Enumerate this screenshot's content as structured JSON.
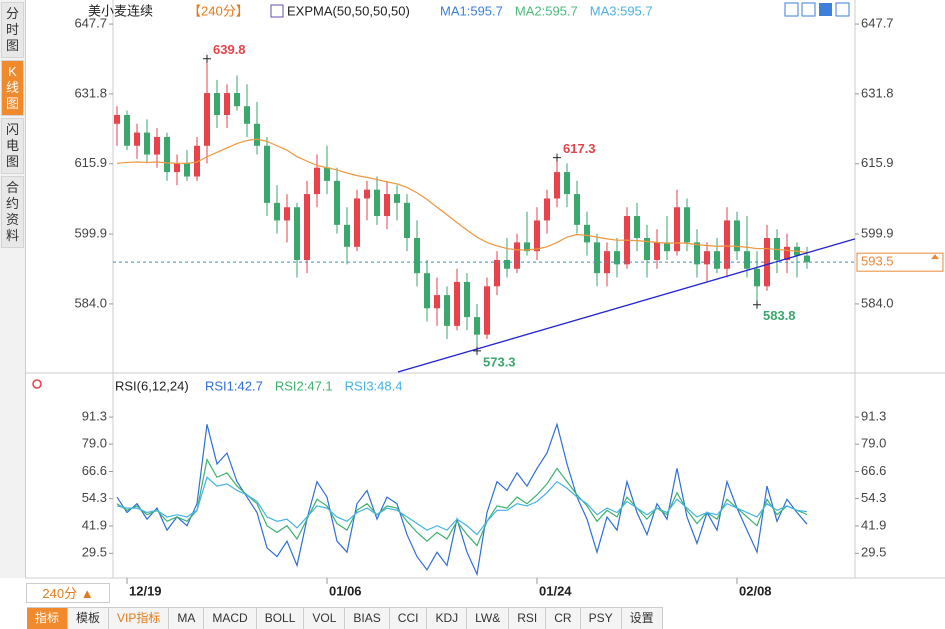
{
  "chart_data": [
    {
      "type": "candlestick",
      "title": "美小麦连续",
      "period": "【240分】",
      "indicator": "EXPMA(50,50,50,50)",
      "legend": [
        {
          "name": "MA1:595.7",
          "color": "#3d7fd9"
        },
        {
          "name": "MA2:595.7",
          "color": "#4cbb7b"
        },
        {
          "name": "MA3:595.7",
          "color": "#4fb3e0"
        }
      ],
      "up_color": "#e8424a",
      "down_color": "#3aa76d",
      "xlim": [
        -0.4,
        73.8
      ],
      "ylim": [
        568.5,
        650.9
      ],
      "yticks": [
        647.7,
        631.8,
        615.9,
        599.9,
        {
          "value": 584,
          "label": "584.0"
        }
      ],
      "open": [
        625,
        627,
        620,
        623,
        618,
        622,
        614,
        616,
        613,
        620,
        632,
        627,
        632,
        629,
        625,
        620,
        607,
        603,
        606,
        594,
        609,
        615,
        612,
        602,
        597,
        608,
        610,
        604,
        609,
        607,
        599,
        591,
        583,
        586,
        579,
        589,
        581,
        577,
        588,
        594,
        592,
        598,
        596,
        603,
        608,
        614,
        609,
        602,
        598,
        591,
        596,
        593,
        604,
        599,
        594,
        598,
        596,
        606,
        598,
        593,
        596,
        592,
        603,
        596,
        592,
        588,
        599,
        594,
        597,
        595
      ],
      "high": [
        629,
        628,
        625,
        626,
        624,
        623,
        618,
        619,
        622,
        639.8,
        635,
        634,
        636,
        634,
        630,
        622,
        611,
        609,
        607,
        612,
        618,
        620,
        615,
        606,
        610,
        612,
        613,
        612,
        611,
        609,
        603,
        594,
        590,
        588,
        592,
        591,
        584,
        590,
        596,
        599,
        600,
        605,
        606,
        610,
        617.3,
        616,
        612,
        605,
        600,
        598,
        599,
        606,
        607,
        602,
        601,
        604,
        610,
        608,
        601,
        598,
        599,
        606,
        605,
        604,
        596,
        602,
        601,
        600,
        598,
        597
      ],
      "low": [
        620,
        619,
        617,
        616,
        615,
        612,
        611,
        612,
        612,
        616,
        624,
        624,
        628,
        622,
        618,
        604,
        600,
        598,
        590,
        591,
        606,
        609,
        600,
        593,
        596,
        603,
        602,
        601,
        603,
        596,
        588,
        580,
        579,
        576,
        578,
        578,
        573.3,
        576,
        586,
        590,
        591,
        595,
        594,
        600,
        606,
        606,
        600,
        595,
        588,
        588,
        590,
        592,
        596,
        590,
        592,
        594,
        595,
        596,
        590,
        589,
        591,
        590,
        594,
        590,
        583.8,
        587,
        591,
        591,
        590,
        592
      ],
      "close": [
        627,
        620,
        623,
        618,
        622,
        614,
        616,
        613,
        620,
        632,
        627,
        632,
        629,
        625,
        620,
        607,
        603,
        606,
        594,
        609,
        615,
        612,
        602,
        597,
        608,
        610,
        604,
        609,
        607,
        599,
        591,
        583,
        586,
        579,
        589,
        581,
        577,
        588,
        594,
        592,
        598,
        596,
        603,
        608,
        614,
        609,
        602,
        598,
        591,
        596,
        593,
        604,
        599,
        594,
        598,
        596,
        606,
        598,
        593,
        596,
        592,
        603,
        596,
        592,
        588,
        599,
        594,
        597,
        595,
        593.5
      ],
      "expma": {
        "color": "#f0963c",
        "values": [
          616,
          616.2,
          616.3,
          616.2,
          616.3,
          616.1,
          616,
          616,
          616.3,
          617.5,
          618.5,
          619.5,
          620.5,
          621.2,
          621.5,
          621,
          620,
          619,
          617.5,
          616.5,
          615.5,
          615,
          614.5,
          613.8,
          613.2,
          612.8,
          612.3,
          611.8,
          611.3,
          610.5,
          609.3,
          607.8,
          606,
          604.3,
          602.5,
          600.8,
          599.2,
          598,
          597.2,
          596.6,
          596.3,
          596.3,
          596.5,
          597,
          598,
          599.2,
          599.8,
          599.6,
          599.2,
          598.8,
          598.5,
          598.5,
          598.4,
          598.2,
          598,
          597.8,
          597.9,
          597.8,
          597.5,
          597.3,
          597.1,
          597.2,
          597.1,
          596.9,
          596.6,
          596.6,
          596.4,
          596.2,
          596,
          595.7
        ]
      },
      "trendline": {
        "color": "#2323d8",
        "x": [
          28.1,
          73.8
        ],
        "y": [
          568.5,
          598.8
        ]
      },
      "annotations": [
        {
          "x": 9,
          "y": 639.8,
          "color": "#e8424a"
        },
        {
          "x": 44,
          "y": 617.3,
          "color": "#e8424a"
        },
        {
          "x": 36,
          "y": 573.3,
          "color": "#3aa76d"
        },
        {
          "x": 64,
          "y": 583.8,
          "color": "#3aa76d"
        }
      ],
      "last_price": 593.5,
      "last_color": "#e8893a"
    },
    {
      "type": "line",
      "title": "RSI(6,12,24)",
      "xlim": [
        -0.4,
        73.8
      ],
      "ylim": [
        18.3,
        101.3
      ],
      "yticks": [
        29.5,
        41.9,
        54.3,
        66.6,
        {
          "value": 79,
          "label": "79.0"
        },
        91.3
      ],
      "categories": [
        null,
        "12/19",
        null,
        null,
        null,
        null,
        null,
        null,
        null,
        null,
        null,
        null,
        null,
        null,
        null,
        null,
        null,
        null,
        null,
        null,
        null,
        "01/06",
        null,
        null,
        null,
        null,
        null,
        null,
        null,
        null,
        null,
        null,
        null,
        null,
        null,
        null,
        null,
        null,
        null,
        null,
        null,
        null,
        "01/24",
        null,
        null,
        null,
        null,
        null,
        null,
        null,
        null,
        null,
        null,
        null,
        null,
        null,
        null,
        null,
        null,
        null,
        null,
        null,
        "02/08",
        null,
        null,
        null,
        null,
        null,
        null,
        null
      ],
      "series": [
        {
          "name": "RSI1:42.7",
          "color": "#2f6fd6",
          "values": [
            55,
            48,
            52,
            45,
            50,
            40,
            46,
            42,
            52,
            88,
            70,
            75,
            62,
            55,
            48,
            32,
            28,
            35,
            24,
            45,
            62,
            55,
            35,
            30,
            52,
            58,
            45,
            55,
            52,
            38,
            28,
            22,
            30,
            24,
            45,
            30,
            20,
            48,
            62,
            58,
            66,
            60,
            68,
            75,
            88,
            70,
            55,
            45,
            30,
            46,
            40,
            62,
            48,
            38,
            52,
            45,
            68,
            46,
            34,
            48,
            40,
            62,
            50,
            40,
            30,
            60,
            44,
            54,
            48,
            42.7
          ]
        },
        {
          "name": "RSI2:47.1",
          "color": "#3fb16e",
          "values": [
            52,
            49,
            51,
            47,
            49,
            44,
            46,
            44,
            49,
            72,
            64,
            66,
            60,
            56,
            52,
            42,
            39,
            42,
            36,
            45,
            54,
            51,
            43,
            40,
            49,
            52,
            47,
            51,
            50,
            44,
            39,
            35,
            39,
            36,
            44,
            38,
            33,
            44,
            51,
            50,
            55,
            52,
            56,
            61,
            68,
            62,
            56,
            51,
            44,
            49,
            46,
            55,
            50,
            45,
            50,
            47,
            57,
            49,
            43,
            48,
            45,
            54,
            50,
            46,
            42,
            54,
            47,
            51,
            49,
            47.1
          ]
        },
        {
          "name": "RSI3:48.4",
          "color": "#45b3e6",
          "values": [
            51,
            50,
            50,
            48,
            49,
            46,
            47,
            46,
            49,
            64,
            60,
            61,
            58,
            56,
            53,
            46,
            44,
            45,
            41,
            46,
            51,
            50,
            46,
            44,
            48,
            50,
            47,
            50,
            49,
            46,
            43,
            40,
            42,
            40,
            45,
            42,
            38,
            44,
            49,
            49,
            52,
            51,
            53,
            57,
            62,
            59,
            55,
            52,
            47,
            50,
            48,
            53,
            50,
            47,
            50,
            48,
            54,
            50,
            46,
            48,
            47,
            52,
            50,
            48,
            46,
            52,
            49,
            51,
            49,
            48.4
          ]
        }
      ]
    }
  ],
  "tabs": [
    "分时图",
    "K线图",
    "闪电图",
    "合约资料"
  ],
  "period_button": "240分 ▲",
  "toolbar": [
    "指标",
    "模板",
    "VIP指标",
    "MA",
    "MACD",
    "BOLL",
    "VOL",
    "BIAS",
    "CCI",
    "KDJ",
    "LW&",
    "RSI",
    "CR",
    "PSY",
    "设置"
  ]
}
